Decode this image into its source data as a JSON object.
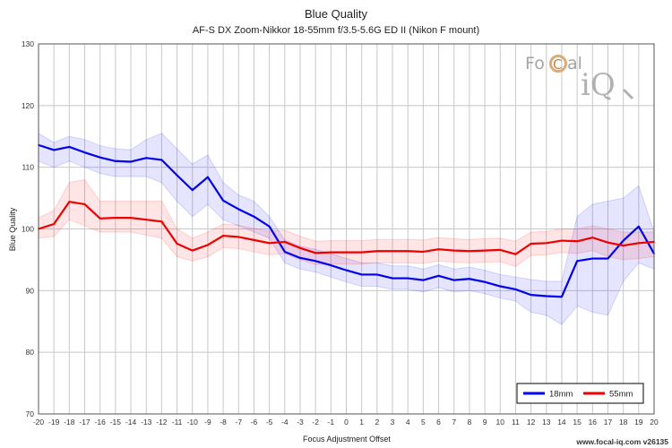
{
  "chart_data": {
    "type": "line",
    "title": "Blue Quality",
    "subtitle": "AF-S DX Zoom-Nikkor 18-55mm f/3.5-5.6G ED II (Nikon F mount)",
    "xlabel": "Focus Adjustment Offset",
    "ylabel": "Blue Quality",
    "xlim": [
      -20,
      20
    ],
    "ylim": [
      70,
      130
    ],
    "yticks": [
      70,
      80,
      90,
      100,
      110,
      120,
      130
    ],
    "grid": true,
    "legend_position": "bottom-right",
    "x": [
      -20,
      -19,
      -18,
      -17,
      -16,
      -15,
      -14,
      -13,
      -12,
      -11,
      -10,
      -9,
      -8,
      -7,
      -6,
      -5,
      -4,
      -3,
      -2,
      -1,
      0,
      1,
      2,
      3,
      4,
      5,
      6,
      7,
      8,
      9,
      10,
      11,
      12,
      13,
      14,
      15,
      16,
      17,
      18,
      19,
      20
    ],
    "series": [
      {
        "name": "18mm",
        "color": "#0000ee",
        "band_color": "#0000ff",
        "values": [
          113.6,
          112.8,
          113.3,
          112.4,
          111.6,
          111.0,
          110.9,
          111.5,
          111.2,
          108.7,
          106.3,
          108.4,
          104.6,
          103.2,
          102.0,
          100.4,
          96.3,
          95.3,
          94.8,
          94.1,
          93.3,
          92.6,
          92.6,
          92.0,
          92.0,
          91.7,
          92.4,
          91.7,
          91.9,
          91.4,
          90.7,
          90.2,
          89.3,
          89.1,
          89.0,
          94.8,
          95.2,
          95.2,
          98.1,
          100.4,
          96.0
        ],
        "upper": [
          115.5,
          114.0,
          115.0,
          114.5,
          113.5,
          113.0,
          112.8,
          114.5,
          115.5,
          113.0,
          110.5,
          112.0,
          107.5,
          105.5,
          104.5,
          102.0,
          98.2,
          97.2,
          96.7,
          96.0,
          95.2,
          94.5,
          94.5,
          94.0,
          94.0,
          93.5,
          94.2,
          93.5,
          93.8,
          93.3,
          92.6,
          92.2,
          91.8,
          91.5,
          91.5,
          102.0,
          104.0,
          104.5,
          105.0,
          107.0,
          99.5
        ],
        "lower": [
          111.0,
          110.0,
          111.0,
          110.0,
          109.0,
          108.5,
          108.5,
          108.5,
          107.5,
          104.5,
          102.0,
          104.0,
          101.5,
          100.5,
          99.5,
          98.5,
          94.5,
          93.5,
          93.0,
          92.2,
          91.4,
          90.7,
          90.7,
          90.2,
          90.2,
          89.8,
          90.5,
          89.8,
          90.0,
          89.5,
          88.8,
          88.3,
          86.5,
          86.0,
          84.5,
          87.5,
          86.5,
          86.0,
          91.5,
          94.5,
          93.5
        ]
      },
      {
        "name": "55mm",
        "color": "#ee0000",
        "band_color": "#ff0000",
        "values": [
          100.0,
          100.8,
          104.4,
          104.0,
          101.7,
          101.8,
          101.8,
          101.5,
          101.2,
          97.6,
          96.5,
          97.4,
          98.9,
          98.7,
          98.2,
          97.7,
          97.9,
          96.9,
          96.1,
          96.2,
          96.2,
          96.2,
          96.4,
          96.4,
          96.4,
          96.3,
          96.7,
          96.5,
          96.4,
          96.5,
          96.6,
          95.9,
          97.6,
          97.7,
          98.1,
          98.0,
          98.6,
          97.8,
          97.3,
          97.7,
          97.9
        ],
        "upper": [
          101.8,
          103.0,
          107.5,
          108.0,
          104.5,
          104.5,
          104.5,
          104.5,
          104.5,
          100.0,
          98.5,
          99.5,
          100.8,
          100.6,
          100.1,
          99.6,
          99.8,
          98.8,
          98.0,
          98.1,
          98.1,
          98.1,
          98.3,
          98.3,
          98.3,
          98.2,
          98.6,
          98.4,
          98.3,
          98.4,
          98.5,
          98.0,
          99.5,
          99.6,
          100.0,
          100.0,
          100.5,
          100.0,
          99.5,
          99.5,
          99.5
        ],
        "lower": [
          98.5,
          98.8,
          101.5,
          100.5,
          99.5,
          99.5,
          99.5,
          99.0,
          98.5,
          95.5,
          94.8,
          95.5,
          97.0,
          96.8,
          96.3,
          95.8,
          96.0,
          95.0,
          94.2,
          94.3,
          94.3,
          94.3,
          94.5,
          94.5,
          94.5,
          94.4,
          94.8,
          94.6,
          94.5,
          94.6,
          94.7,
          93.9,
          95.7,
          95.8,
          96.2,
          96.0,
          96.5,
          95.5,
          95.0,
          95.2,
          95.5
        ]
      }
    ]
  },
  "logo": {
    "text_fo": "Fo",
    "text_c": "C",
    "text_al": "al",
    "text_iq": "iQ"
  },
  "watermark": "www.focal-iq.com  v26135"
}
